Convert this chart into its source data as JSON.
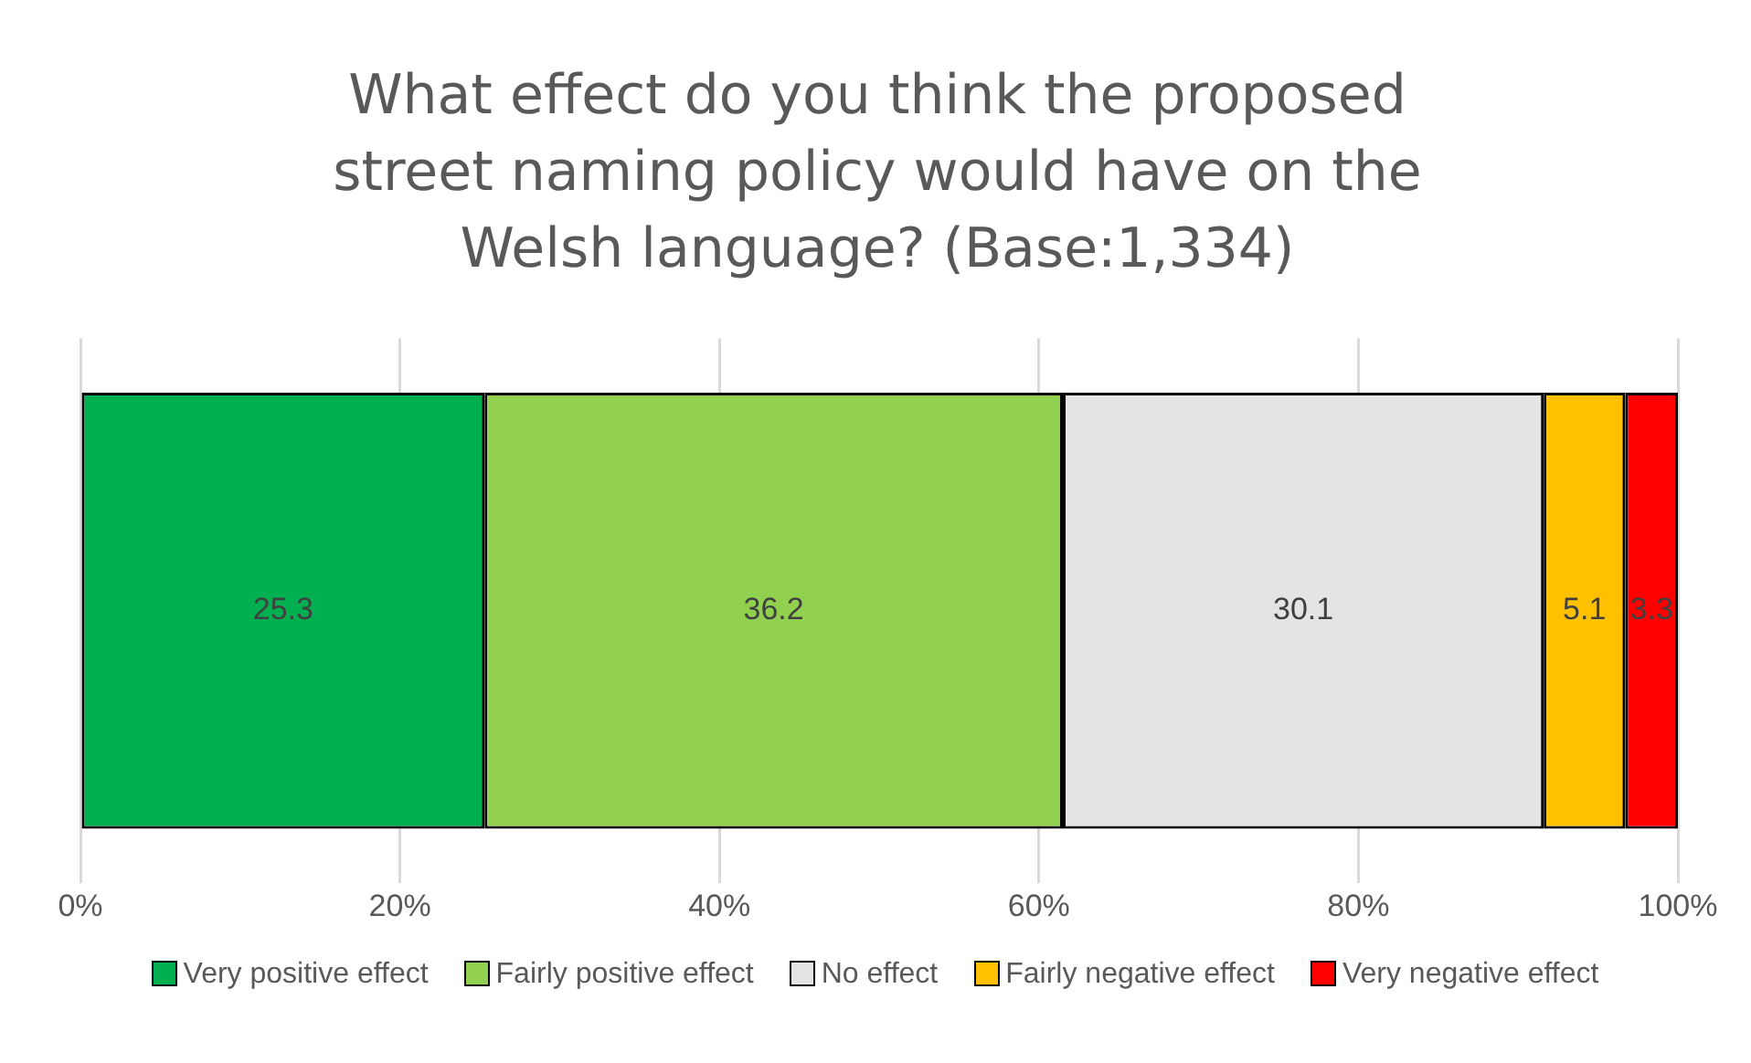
{
  "chart_data": {
    "type": "bar",
    "orientation": "horizontal",
    "stacked": true,
    "title": "What effect do you think the proposed street naming policy would have on the Welsh language?  (Base:1,334)",
    "categories": [
      null
    ],
    "series": [
      {
        "name": "Very positive effect",
        "color": "#00b050",
        "values": [
          25.3
        ]
      },
      {
        "name": "Fairly positive effect",
        "color": "#92d050",
        "values": [
          36.2
        ]
      },
      {
        "name": "No effect",
        "color": "#e4e4e4",
        "values": [
          30.1
        ]
      },
      {
        "name": "Fairly negative effect",
        "color": "#ffc000",
        "values": [
          5.1
        ]
      },
      {
        "name": "Very negative effect",
        "color": "#ff0000",
        "values": [
          3.3
        ]
      }
    ],
    "xlim": [
      0,
      100
    ],
    "xticks": [
      {
        "value": 0,
        "label": "0%"
      },
      {
        "value": 20,
        "label": "20%"
      },
      {
        "value": 40,
        "label": "40%"
      },
      {
        "value": 60,
        "label": "60%"
      },
      {
        "value": 80,
        "label": "80%"
      },
      {
        "value": 100,
        "label": "100%"
      }
    ],
    "grid": "x",
    "legend": "bottom",
    "data_labels": true
  }
}
